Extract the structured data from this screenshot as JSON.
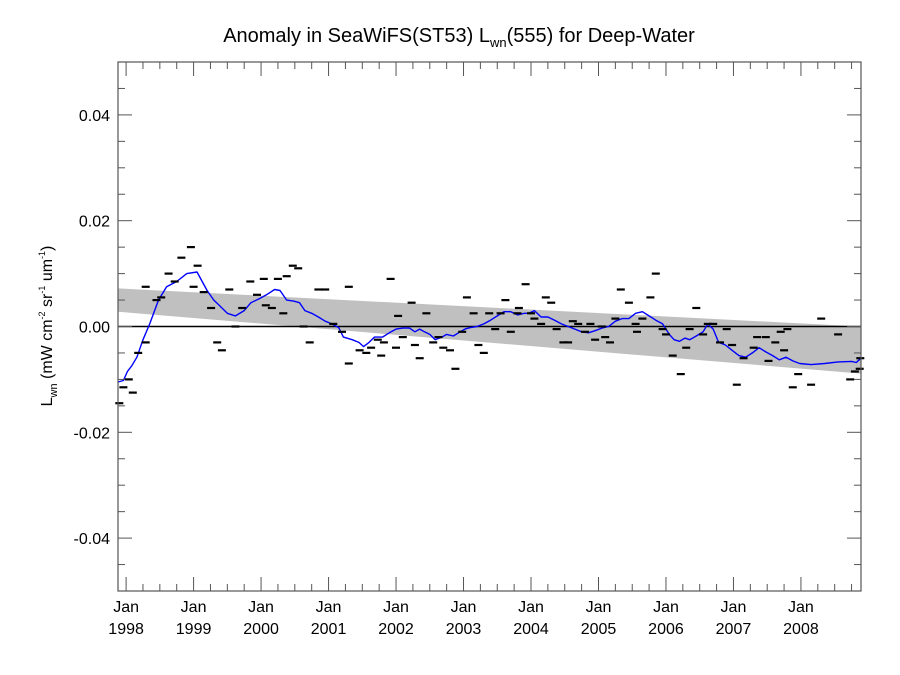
{
  "chart_data": {
    "type": "line",
    "title": {
      "prefix": "Anomaly in SeaWiFS(ST53) L",
      "subscript": "wn",
      "suffix": "(555) for Deep-Water"
    },
    "xlabel": "",
    "ylabel": {
      "main": "L",
      "main_sub": "wn",
      "units_open": " (mW cm",
      "cm_exp": "-2",
      "sr": " sr",
      "sr_exp": "-1",
      "um": " um",
      "um_exp": "-1",
      "close": ")"
    },
    "xlim": [
      1997.88,
      1998.0,
      2008.89
    ],
    "x_range": [
      1997.88,
      2008.89
    ],
    "ylim": [
      -0.05,
      0.05
    ],
    "grid": false,
    "y_ticks": [
      {
        "value": 0.04,
        "label": "0.04"
      },
      {
        "value": 0.02,
        "label": "0.02"
      },
      {
        "value": 0.0,
        "label": "0.00"
      },
      {
        "value": -0.02,
        "label": "-0.02"
      },
      {
        "value": -0.04,
        "label": "-0.04"
      }
    ],
    "y_minor_step": 0.005,
    "x_ticks": [
      {
        "value": 1998,
        "label1": "Jan",
        "label2": "1998"
      },
      {
        "value": 1999,
        "label1": "Jan",
        "label2": "1999"
      },
      {
        "value": 2000,
        "label1": "Jan",
        "label2": "2000"
      },
      {
        "value": 2001,
        "label1": "Jan",
        "label2": "2001"
      },
      {
        "value": 2002,
        "label1": "Jan",
        "label2": "2002"
      },
      {
        "value": 2003,
        "label1": "Jan",
        "label2": "2003"
      },
      {
        "value": 2004,
        "label1": "Jan",
        "label2": "2004"
      },
      {
        "value": 2005,
        "label1": "Jan",
        "label2": "2005"
      },
      {
        "value": 2006,
        "label1": "Jan",
        "label2": "2006"
      },
      {
        "value": 2007,
        "label1": "Jan",
        "label2": "2007"
      },
      {
        "value": 2008,
        "label1": "Jan",
        "label2": "2008"
      }
    ],
    "x_minor_step": 0.25,
    "zero_line": 0.0,
    "colors": {
      "band": "#c0c0c0",
      "smoothed": "#0000ff",
      "points": "#000000",
      "axis": "#000000"
    },
    "trend_band": {
      "start": {
        "x": 1997.88,
        "upper": 0.0072,
        "lower": 0.0028
      },
      "end": {
        "x": 2008.89,
        "upper": 0.0,
        "lower": -0.0089
      }
    },
    "series": [
      {
        "name": "monthly anomaly",
        "style": "dash-markers",
        "points": [
          [
            1997.9,
            -0.0145
          ],
          [
            1997.96,
            -0.0115
          ],
          [
            1998.04,
            -0.01
          ],
          [
            1998.1,
            -0.0125
          ],
          [
            1998.18,
            -0.005
          ],
          [
            1998.29,
            0.0075
          ],
          [
            1998.29,
            -0.003
          ],
          [
            1998.45,
            0.005
          ],
          [
            1998.52,
            0.0055
          ],
          [
            1998.63,
            0.01
          ],
          [
            1998.72,
            0.0085
          ],
          [
            1998.82,
            0.013
          ],
          [
            1998.96,
            0.015
          ],
          [
            1999.0,
            0.0075
          ],
          [
            1999.06,
            0.0115
          ],
          [
            1999.15,
            0.0065
          ],
          [
            1999.26,
            0.0035
          ],
          [
            1999.35,
            -0.003
          ],
          [
            1999.42,
            -0.0045
          ],
          [
            1999.53,
            0.007
          ],
          [
            1999.62,
            0.0
          ],
          [
            1999.72,
            0.0035
          ],
          [
            1999.84,
            0.0085
          ],
          [
            1999.94,
            0.006
          ],
          [
            2000.04,
            0.009
          ],
          [
            2000.07,
            0.004
          ],
          [
            2000.16,
            0.0035
          ],
          [
            2000.25,
            0.009
          ],
          [
            2000.33,
            0.0025
          ],
          [
            2000.38,
            0.0095
          ],
          [
            2000.47,
            0.0115
          ],
          [
            2000.55,
            0.011
          ],
          [
            2000.63,
            0.0
          ],
          [
            2000.72,
            -0.003
          ],
          [
            2000.85,
            0.007
          ],
          [
            2000.95,
            0.007
          ],
          [
            2001.07,
            0.0005
          ],
          [
            2001.2,
            -0.001
          ],
          [
            2001.3,
            0.0075
          ],
          [
            2001.3,
            -0.007
          ],
          [
            2001.46,
            -0.0045
          ],
          [
            2001.56,
            -0.005
          ],
          [
            2001.63,
            -0.004
          ],
          [
            2001.73,
            -0.0025
          ],
          [
            2001.78,
            -0.0055
          ],
          [
            2001.82,
            -0.003
          ],
          [
            2001.92,
            0.009
          ],
          [
            2002.0,
            -0.004
          ],
          [
            2002.03,
            0.002
          ],
          [
            2002.1,
            -0.002
          ],
          [
            2002.23,
            0.0045
          ],
          [
            2002.28,
            -0.0035
          ],
          [
            2002.35,
            -0.006
          ],
          [
            2002.45,
            0.0025
          ],
          [
            2002.55,
            -0.003
          ],
          [
            2002.63,
            -0.002
          ],
          [
            2002.7,
            -0.004
          ],
          [
            2002.8,
            -0.0045
          ],
          [
            2002.88,
            -0.008
          ],
          [
            2002.98,
            -0.001
          ],
          [
            2003.05,
            0.0055
          ],
          [
            2003.15,
            0.0025
          ],
          [
            2003.22,
            -0.0035
          ],
          [
            2003.3,
            -0.005
          ],
          [
            2003.38,
            0.0025
          ],
          [
            2003.47,
            -0.0005
          ],
          [
            2003.55,
            0.0025
          ],
          [
            2003.62,
            0.005
          ],
          [
            2003.7,
            -0.001
          ],
          [
            2003.8,
            0.0025
          ],
          [
            2003.82,
            0.0035
          ],
          [
            2003.92,
            0.008
          ],
          [
            2004.0,
            0.0025
          ],
          [
            2004.05,
            0.0015
          ],
          [
            2004.15,
            0.0005
          ],
          [
            2004.22,
            0.0055
          ],
          [
            2004.3,
            0.0045
          ],
          [
            2004.38,
            -0.0005
          ],
          [
            2004.48,
            -0.003
          ],
          [
            2004.55,
            -0.003
          ],
          [
            2004.62,
            0.001
          ],
          [
            2004.7,
            0.0005
          ],
          [
            2004.8,
            -0.001
          ],
          [
            2004.88,
            0.0005
          ],
          [
            2004.95,
            -0.0025
          ],
          [
            2005.05,
            0.0
          ],
          [
            2005.1,
            -0.002
          ],
          [
            2005.17,
            -0.003
          ],
          [
            2005.25,
            0.0015
          ],
          [
            2005.33,
            0.007
          ],
          [
            2005.45,
            0.0045
          ],
          [
            2005.55,
            0.0005
          ],
          [
            2005.57,
            -0.001
          ],
          [
            2005.65,
            0.0015
          ],
          [
            2005.77,
            0.0055
          ],
          [
            2005.85,
            0.01
          ],
          [
            2005.95,
            -0.0005
          ],
          [
            2006.0,
            -0.0015
          ],
          [
            2006.1,
            -0.0055
          ],
          [
            2006.22,
            -0.009
          ],
          [
            2006.3,
            -0.004
          ],
          [
            2006.35,
            -0.0005
          ],
          [
            2006.45,
            0.0035
          ],
          [
            2006.55,
            -0.0015
          ],
          [
            2006.62,
            0.0005
          ],
          [
            2006.7,
            0.0005
          ],
          [
            2006.8,
            -0.003
          ],
          [
            2006.9,
            -0.0005
          ],
          [
            2006.98,
            -0.0035
          ],
          [
            2007.05,
            -0.011
          ],
          [
            2007.15,
            -0.006
          ],
          [
            2007.3,
            -0.004
          ],
          [
            2007.35,
            -0.002
          ],
          [
            2007.48,
            -0.002
          ],
          [
            2007.52,
            -0.0065
          ],
          [
            2007.62,
            -0.003
          ],
          [
            2007.7,
            -0.001
          ],
          [
            2007.75,
            -0.0045
          ],
          [
            2007.8,
            -0.0005
          ],
          [
            2007.88,
            -0.0115
          ],
          [
            2007.96,
            -0.009
          ],
          [
            2008.15,
            -0.011
          ],
          [
            2008.3,
            0.0015
          ],
          [
            2008.55,
            -0.0015
          ],
          [
            2008.73,
            -0.01
          ],
          [
            2008.8,
            -0.0085
          ],
          [
            2008.87,
            -0.008
          ],
          [
            2008.88,
            -0.006
          ]
        ]
      },
      {
        "name": "running mean",
        "style": "line",
        "points": [
          [
            1997.88,
            -0.0105
          ],
          [
            1997.96,
            -0.0102
          ],
          [
            1998.02,
            -0.0085
          ],
          [
            1998.08,
            -0.0075
          ],
          [
            1998.16,
            -0.0058
          ],
          [
            1998.25,
            -0.0025
          ],
          [
            1998.35,
            0.0005
          ],
          [
            1998.48,
            0.005
          ],
          [
            1998.6,
            0.0075
          ],
          [
            1998.75,
            0.0085
          ],
          [
            1998.9,
            0.01
          ],
          [
            1999.05,
            0.0103
          ],
          [
            1999.2,
            0.0068
          ],
          [
            1999.3,
            0.005
          ],
          [
            1999.38,
            0.004
          ],
          [
            1999.5,
            0.0025
          ],
          [
            1999.62,
            0.002
          ],
          [
            1999.75,
            0.003
          ],
          [
            1999.85,
            0.0045
          ],
          [
            1999.98,
            0.0053
          ],
          [
            2000.08,
            0.006
          ],
          [
            2000.2,
            0.007
          ],
          [
            2000.28,
            0.0068
          ],
          [
            2000.38,
            0.005
          ],
          [
            2000.48,
            0.0048
          ],
          [
            2000.57,
            0.0045
          ],
          [
            2000.65,
            0.003
          ],
          [
            2000.75,
            0.0025
          ],
          [
            2000.85,
            0.0018
          ],
          [
            2000.95,
            0.001
          ],
          [
            2001.05,
            0.0005
          ],
          [
            2001.15,
            -0.0002
          ],
          [
            2001.22,
            -0.002
          ],
          [
            2001.35,
            -0.0025
          ],
          [
            2001.45,
            -0.003
          ],
          [
            2001.52,
            -0.0038
          ],
          [
            2001.6,
            -0.003
          ],
          [
            2001.68,
            -0.002
          ],
          [
            2001.8,
            -0.002
          ],
          [
            2001.9,
            -0.0012
          ],
          [
            2002.0,
            -0.0005
          ],
          [
            2002.1,
            -0.0003
          ],
          [
            2002.2,
            -0.0003
          ],
          [
            2002.28,
            -0.001
          ],
          [
            2002.35,
            -0.0005
          ],
          [
            2002.42,
            -0.001
          ],
          [
            2002.5,
            -0.0015
          ],
          [
            2002.58,
            -0.0025
          ],
          [
            2002.68,
            -0.002
          ],
          [
            2002.75,
            -0.0015
          ],
          [
            2002.85,
            -0.0018
          ],
          [
            2002.95,
            -0.001
          ],
          [
            2003.02,
            -0.0005
          ],
          [
            2003.1,
            -0.0002
          ],
          [
            2003.2,
            0.0
          ],
          [
            2003.3,
            0.0005
          ],
          [
            2003.4,
            0.0012
          ],
          [
            2003.5,
            0.002
          ],
          [
            2003.6,
            0.0028
          ],
          [
            2003.7,
            0.0028
          ],
          [
            2003.8,
            0.0022
          ],
          [
            2003.9,
            0.0025
          ],
          [
            2003.97,
            0.0025
          ],
          [
            2004.05,
            0.003
          ],
          [
            2004.15,
            0.0018
          ],
          [
            2004.25,
            0.0018
          ],
          [
            2004.35,
            0.0012
          ],
          [
            2004.45,
            0.0005
          ],
          [
            2004.55,
            0.0
          ],
          [
            2004.65,
            -0.0005
          ],
          [
            2004.75,
            -0.001
          ],
          [
            2004.85,
            -0.0012
          ],
          [
            2004.95,
            -0.0008
          ],
          [
            2005.05,
            -0.0003
          ],
          [
            2005.15,
            0.0
          ],
          [
            2005.25,
            0.001
          ],
          [
            2005.35,
            0.0015
          ],
          [
            2005.45,
            0.0015
          ],
          [
            2005.55,
            0.0025
          ],
          [
            2005.65,
            0.0028
          ],
          [
            2005.75,
            0.002
          ],
          [
            2005.85,
            0.0012
          ],
          [
            2005.95,
            0.0005
          ],
          [
            2006.0,
            -0.0005
          ],
          [
            2006.05,
            -0.0015
          ],
          [
            2006.12,
            -0.0025
          ],
          [
            2006.2,
            -0.0028
          ],
          [
            2006.28,
            -0.0022
          ],
          [
            2006.35,
            -0.0025
          ],
          [
            2006.45,
            -0.0018
          ],
          [
            2006.55,
            -0.001
          ],
          [
            2006.62,
            0.0005
          ],
          [
            2006.7,
            -0.0005
          ],
          [
            2006.78,
            -0.003
          ],
          [
            2006.88,
            -0.0035
          ],
          [
            2006.98,
            -0.0045
          ],
          [
            2007.08,
            -0.0055
          ],
          [
            2007.18,
            -0.0058
          ],
          [
            2007.28,
            -0.005
          ],
          [
            2007.38,
            -0.004
          ],
          [
            2007.48,
            -0.0048
          ],
          [
            2007.58,
            -0.0055
          ],
          [
            2007.68,
            -0.0063
          ],
          [
            2007.78,
            -0.0058
          ],
          [
            2007.88,
            -0.0065
          ],
          [
            2007.98,
            -0.007
          ],
          [
            2008.15,
            -0.0072
          ],
          [
            2008.35,
            -0.007
          ],
          [
            2008.55,
            -0.0067
          ],
          [
            2008.75,
            -0.0066
          ],
          [
            2008.82,
            -0.0068
          ],
          [
            2008.89,
            -0.006
          ]
        ]
      }
    ]
  }
}
